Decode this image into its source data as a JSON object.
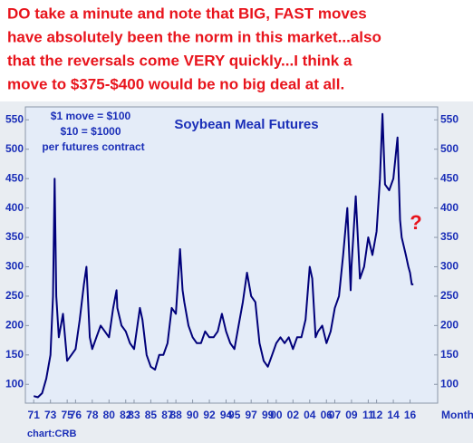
{
  "chart_data": {
    "type": "line",
    "title": [
      "DO take a minute and note that BIG, FAST moves",
      "have absolutely been the norm in this market...also",
      "that the reversals come VERY quickly...I think a",
      "move to $375-$400 would be no big deal at all."
    ],
    "subtitle": "Soybean Meal Futures",
    "annotations": [
      "$1 move = $100",
      "$10 = $1000",
      "per futures contract"
    ],
    "question_mark": "?",
    "x_label": "Monthly",
    "source": "chart:CRB",
    "xlim": [
      1970,
      2019.3
    ],
    "ylim": [
      68,
      572
    ],
    "yticks": [
      100,
      150,
      200,
      250,
      300,
      350,
      400,
      450,
      500,
      550
    ],
    "y2lim": [
      68,
      572
    ],
    "y2ticks": [
      100,
      150,
      200,
      250,
      300,
      350,
      400,
      450,
      500,
      550
    ],
    "xticks": [
      {
        "value": 1971,
        "label": "71"
      },
      {
        "value": 1973,
        "label": "73"
      },
      {
        "value": 1975,
        "label": "75"
      },
      {
        "value": 1976,
        "label": "76"
      },
      {
        "value": 1978,
        "label": "78"
      },
      {
        "value": 1980,
        "label": "80"
      },
      {
        "value": 1982,
        "label": "82"
      },
      {
        "value": 1983,
        "label": "83"
      },
      {
        "value": 1985,
        "label": "85"
      },
      {
        "value": 1987,
        "label": "87"
      },
      {
        "value": 1988,
        "label": "88"
      },
      {
        "value": 1990,
        "label": "90"
      },
      {
        "value": 1992,
        "label": "92"
      },
      {
        "value": 1994,
        "label": "94"
      },
      {
        "value": 1995,
        "label": "95"
      },
      {
        "value": 1997,
        "label": "97"
      },
      {
        "value": 1999,
        "label": "99"
      },
      {
        "value": 2000,
        "label": "00"
      },
      {
        "value": 2002,
        "label": "02"
      },
      {
        "value": 2004,
        "label": "04"
      },
      {
        "value": 2006,
        "label": "06"
      },
      {
        "value": 2007,
        "label": "07"
      },
      {
        "value": 2009,
        "label": "09"
      },
      {
        "value": 2011,
        "label": "11"
      },
      {
        "value": 2012,
        "label": "12"
      },
      {
        "value": 2014,
        "label": "14"
      },
      {
        "value": 2016,
        "label": "16"
      }
    ],
    "x": [
      1971,
      1971.5,
      1972,
      1972.5,
      1973,
      1973.3,
      1973.5,
      1973.7,
      1974,
      1974.5,
      1975,
      1975.5,
      1976,
      1976.5,
      1977,
      1977.3,
      1977.7,
      1978,
      1978.5,
      1979,
      1979.5,
      1980,
      1980.5,
      1980.9,
      1981,
      1981.5,
      1982,
      1982.5,
      1983,
      1983.7,
      1984,
      1984.5,
      1985,
      1985.5,
      1986,
      1986.5,
      1987,
      1987.5,
      1988,
      1988.5,
      1988.8,
      1989,
      1989.5,
      1990,
      1990.5,
      1991,
      1991.5,
      1992,
      1992.5,
      1993,
      1993.5,
      1994,
      1994.5,
      1995,
      1995.5,
      1996,
      1996.5,
      1997,
      1997.5,
      1998,
      1998.5,
      1999,
      1999.5,
      2000,
      2000.5,
      2001,
      2001.5,
      2002,
      2002.5,
      2003,
      2003.5,
      2004,
      2004.3,
      2004.7,
      2005,
      2005.5,
      2006,
      2006.5,
      2007,
      2007.5,
      2008,
      2008.5,
      2008.9,
      2009,
      2009.5,
      2010,
      2010.5,
      2011,
      2011.5,
      2012,
      2012.4,
      2012.7,
      2013,
      2013.5,
      2014,
      2014.5,
      2014.8,
      2015,
      2015.5,
      2015.8,
      2016,
      2016.2,
      2016.4
    ],
    "series": [
      {
        "name": "Soybean Meal",
        "color": "#00007a",
        "values": [
          80,
          78,
          85,
          110,
          150,
          250,
          450,
          250,
          180,
          220,
          140,
          150,
          160,
          210,
          270,
          300,
          180,
          160,
          180,
          200,
          190,
          180,
          230,
          260,
          230,
          200,
          190,
          170,
          160,
          230,
          210,
          150,
          130,
          125,
          150,
          150,
          170,
          230,
          220,
          330,
          260,
          240,
          200,
          180,
          170,
          170,
          190,
          180,
          180,
          190,
          220,
          190,
          170,
          160,
          200,
          240,
          290,
          250,
          240,
          170,
          140,
          130,
          150,
          170,
          180,
          170,
          180,
          160,
          180,
          180,
          210,
          300,
          280,
          180,
          190,
          200,
          170,
          190,
          230,
          250,
          320,
          400,
          260,
          300,
          420,
          280,
          300,
          350,
          320,
          360,
          450,
          560,
          440,
          430,
          450,
          520,
          380,
          350,
          320,
          300,
          290,
          270,
          270
        ]
      }
    ]
  }
}
